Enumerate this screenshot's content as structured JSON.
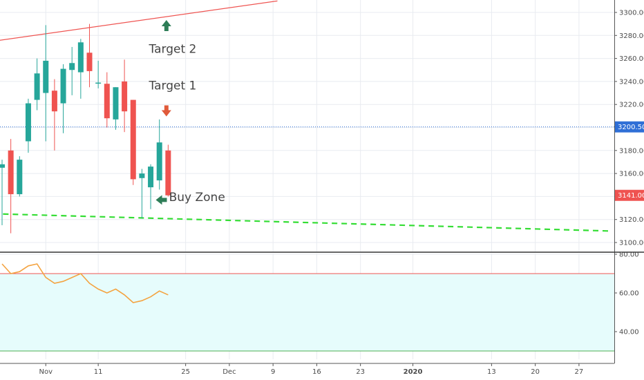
{
  "chart_data": {
    "type": "candlestick",
    "title": "",
    "colors": {
      "up": "#26a69a",
      "down": "#ef5350",
      "grid": "#e8ebf0",
      "price_line": "#2f6fd6",
      "support": "#33dd33",
      "resistance": "#ef5350",
      "rsi": "#f4a340",
      "rsi_band": "#e6fcfc",
      "arrow_up": "#2e7d57",
      "arrow_down": "#e05a3a"
    },
    "price_axis": {
      "range": [
        3090,
        3310
      ],
      "ticks": [
        "3100.00",
        "3120.00",
        "3140.00",
        "3160.00",
        "3180.00",
        "3200.00",
        "3220.00",
        "3240.00",
        "3260.00",
        "3280.00",
        "3300.00"
      ]
    },
    "time_axis": {
      "labels": [
        {
          "text": "Nov",
          "index": 5
        },
        {
          "text": "11",
          "index": 11
        },
        {
          "text": "25",
          "index": 21
        },
        {
          "text": "Dec",
          "index": 26
        },
        {
          "text": "9",
          "index": 31
        },
        {
          "text": "16",
          "index": 36
        },
        {
          "text": "23",
          "index": 41
        },
        {
          "text": "2020",
          "index": 47,
          "bold": true
        },
        {
          "text": "13",
          "index": 56
        },
        {
          "text": "20",
          "index": 61
        },
        {
          "text": "27",
          "index": 66
        }
      ]
    },
    "candles": [
      {
        "i": 0,
        "o": 3165,
        "h": 3172,
        "l": 3115,
        "c": 3168
      },
      {
        "i": 1,
        "o": 3180,
        "h": 3190,
        "l": 3108,
        "c": 3142
      },
      {
        "i": 2,
        "o": 3142,
        "h": 3175,
        "l": 3140,
        "c": 3172
      },
      {
        "i": 3,
        "o": 3188,
        "h": 3225,
        "l": 3178,
        "c": 3221
      },
      {
        "i": 4,
        "o": 3224,
        "h": 3260,
        "l": 3215,
        "c": 3247
      },
      {
        "i": 5,
        "o": 3230,
        "h": 3289,
        "l": 3188,
        "c": 3258
      },
      {
        "i": 6,
        "o": 3232,
        "h": 3242,
        "l": 3180,
        "c": 3214
      },
      {
        "i": 7,
        "o": 3221,
        "h": 3255,
        "l": 3195,
        "c": 3251
      },
      {
        "i": 8,
        "o": 3250,
        "h": 3270,
        "l": 3228,
        "c": 3256
      },
      {
        "i": 9,
        "o": 3248,
        "h": 3277,
        "l": 3225,
        "c": 3274
      },
      {
        "i": 10,
        "o": 3265,
        "h": 3290,
        "l": 3235,
        "c": 3249
      },
      {
        "i": 11,
        "o": 3239,
        "h": 3258,
        "l": 3234,
        "c": 3239
      },
      {
        "i": 12,
        "o": 3238,
        "h": 3248,
        "l": 3200,
        "c": 3208
      },
      {
        "i": 13,
        "o": 3207,
        "h": 3235,
        "l": 3198,
        "c": 3235
      },
      {
        "i": 14,
        "o": 3240,
        "h": 3259,
        "l": 3196,
        "c": 3214
      },
      {
        "i": 15,
        "o": 3224,
        "h": 3224,
        "l": 3150,
        "c": 3155
      },
      {
        "i": 16,
        "o": 3156,
        "h": 3164,
        "l": 3121,
        "c": 3160
      },
      {
        "i": 17,
        "o": 3148,
        "h": 3168,
        "l": 3129,
        "c": 3166
      },
      {
        "i": 18,
        "o": 3154,
        "h": 3207,
        "l": 3146,
        "c": 3187
      },
      {
        "i": 19,
        "o": 3180,
        "h": 3185,
        "l": 3140,
        "c": 3141
      }
    ],
    "current_price": {
      "value": 3141.0,
      "label": "3141.00"
    },
    "price_line": {
      "value": 3200.5,
      "label": "3200.50"
    },
    "resistance_line": {
      "from": {
        "index": -1,
        "value": 3275
      },
      "to": {
        "index": 31.5,
        "value": 3310
      }
    },
    "support_line": {
      "from": {
        "index": -1,
        "value": 3125
      },
      "to": {
        "index": 69.5,
        "value": 3110
      }
    },
    "annotations": [
      {
        "text": "Target 2",
        "index": 16.8,
        "value": 3265,
        "arrow": "up",
        "arrow_index": 18.8,
        "arrow_value": 3288
      },
      {
        "text": "Target 1",
        "index": 16.8,
        "value": 3233,
        "arrow": "down",
        "arrow_index": 18.8,
        "arrow_value": 3215
      },
      {
        "text": "Buy Zone",
        "index": 19.1,
        "value": 3136,
        "arrow": "left",
        "arrow_index": 18.3,
        "arrow_value": 3137
      }
    ],
    "rsi": {
      "range": [
        25,
        82
      ],
      "ticks": [
        "40.00",
        "60.00",
        "80.00"
      ],
      "overbought": 70,
      "oversold": 30,
      "series": [
        {
          "i": 0,
          "v": 75
        },
        {
          "i": 1,
          "v": 70
        },
        {
          "i": 2,
          "v": 71
        },
        {
          "i": 3,
          "v": 74
        },
        {
          "i": 4,
          "v": 75
        },
        {
          "i": 5,
          "v": 68
        },
        {
          "i": 6,
          "v": 65
        },
        {
          "i": 7,
          "v": 66
        },
        {
          "i": 8,
          "v": 68
        },
        {
          "i": 9,
          "v": 70
        },
        {
          "i": 10,
          "v": 65
        },
        {
          "i": 11,
          "v": 62
        },
        {
          "i": 12,
          "v": 60
        },
        {
          "i": 13,
          "v": 62
        },
        {
          "i": 14,
          "v": 59
        },
        {
          "i": 15,
          "v": 55
        },
        {
          "i": 16,
          "v": 56
        },
        {
          "i": 17,
          "v": 58
        },
        {
          "i": 18,
          "v": 61
        },
        {
          "i": 19,
          "v": 59
        }
      ]
    }
  }
}
